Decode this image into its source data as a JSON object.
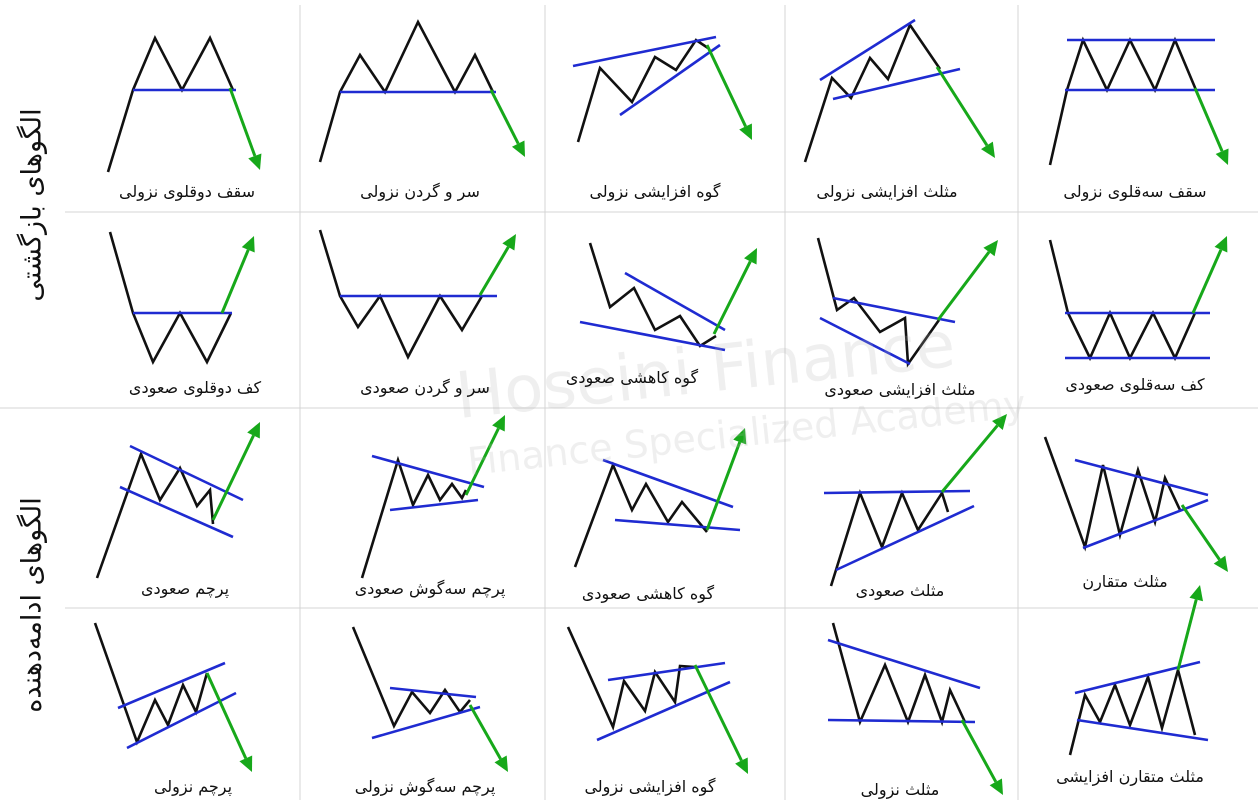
{
  "side_labels": {
    "reversal": "الگوهای بازگشتی",
    "continuation": "الگوهای ادامه‌دهنده"
  },
  "watermark": {
    "line1": "Hoseini Finance",
    "line2": "Finance Specialized Academy"
  },
  "colors": {
    "price": "#111111",
    "trend": "#1f2bd1",
    "arrow": "#17a81a",
    "grid": "#d4d4d4"
  },
  "patterns": [
    {
      "id": "double-top",
      "label": "سقف دوقلوی نزولی"
    },
    {
      "id": "head-and-shoulders-top",
      "label": "سر و گردن نزولی"
    },
    {
      "id": "rising-wedge-reversal",
      "label": "گوه افزایشی نزولی"
    },
    {
      "id": "expanding-triangle-top",
      "label": "مثلث افزایشی نزولی"
    },
    {
      "id": "triple-top",
      "label": "سقف سه‌قلوی نزولی"
    },
    {
      "id": "double-bottom",
      "label": "کف دوقلوی صعودی"
    },
    {
      "id": "inverse-head-and-shoulders",
      "label": "سر و گردن صعودی"
    },
    {
      "id": "falling-wedge-reversal",
      "label": "گوه کاهشی صعودی"
    },
    {
      "id": "expanding-triangle-bottom",
      "label": "مثلث افزایشی صعودی"
    },
    {
      "id": "triple-bottom",
      "label": "کف سه‌قلوی صعودی"
    },
    {
      "id": "bull-flag",
      "label": "پرچم صعودی"
    },
    {
      "id": "bull-pennant",
      "label": "پرچم سه‌گوش صعودی"
    },
    {
      "id": "falling-wedge-continuation",
      "label": "گوه کاهشی صعودی"
    },
    {
      "id": "ascending-triangle",
      "label": "مثلث صعودی"
    },
    {
      "id": "symmetrical-triangle",
      "label": "مثلث متقارن"
    },
    {
      "id": "bear-flag",
      "label": "پرچم نزولی"
    },
    {
      "id": "bear-pennant",
      "label": "پرچم سه‌گوش نزولی"
    },
    {
      "id": "rising-wedge-continuation",
      "label": "گوه افزایشی نزولی"
    },
    {
      "id": "descending-triangle",
      "label": "مثلث نزولی"
    },
    {
      "id": "broadening-symmetrical-triangle",
      "label": "مثلث متقارن افزایشی"
    }
  ]
}
